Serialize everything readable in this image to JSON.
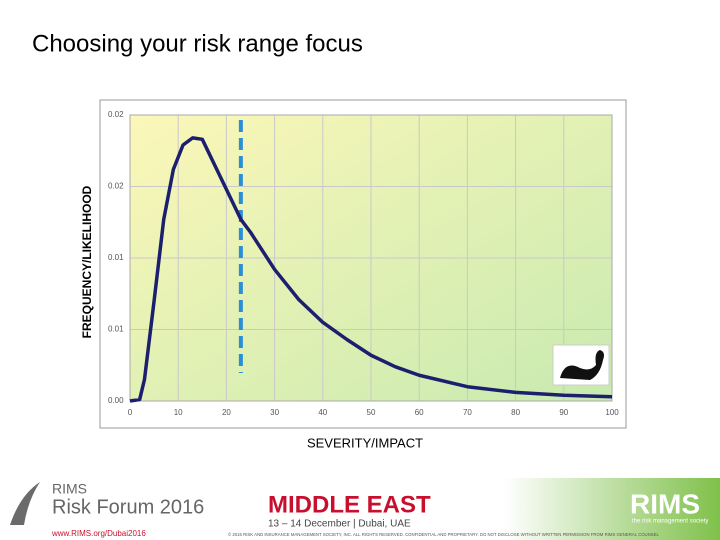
{
  "chart_data": {
    "type": "line",
    "title": "Choosing your risk range focus",
    "y_label": "FREQUENCY/LIKELIHOOD",
    "x_label": "SEVERITY/IMPACT",
    "x": [
      0,
      2,
      3,
      5,
      7,
      9,
      11,
      13,
      15,
      17,
      20,
      23,
      25,
      30,
      35,
      40,
      45,
      50,
      55,
      60,
      70,
      80,
      90,
      100
    ],
    "values": [
      0,
      0.0001,
      0.0015,
      0.007,
      0.0127,
      0.0162,
      0.0179,
      0.0184,
      0.0183,
      0.0169,
      0.0148,
      0.0127,
      0.0118,
      0.0092,
      0.0071,
      0.0055,
      0.0043,
      0.0032,
      0.0024,
      0.0018,
      0.001,
      0.0006,
      0.0004,
      0.0003
    ],
    "color": "#1c1f6e",
    "focus_x": 23,
    "focus_color": "#2a8fd6",
    "xlim": [
      0,
      100
    ],
    "xticks": [
      0,
      10,
      20,
      30,
      40,
      50,
      60,
      70,
      80,
      90,
      100
    ],
    "ylim": [
      0,
      0.02
    ],
    "yticks": [
      {
        "value": 0,
        "label": "0.00"
      },
      {
        "value": 0.005,
        "label": "0.01"
      },
      {
        "value": 0.01,
        "label": "0.01"
      },
      {
        "value": 0.015,
        "label": "0.02"
      },
      {
        "value": 0.02,
        "label": "0.02"
      }
    ],
    "grid": true
  },
  "footer": {
    "brand": "RIMS",
    "event": "Risk Forum 2016",
    "region": "MIDDLE EAST",
    "dates": "13 – 14 December | Dubai, UAE",
    "url": "www.RIMS.org/Dubai2016",
    "copyright": "© 2016 RISK AND INSURANCE MANAGEMENT SOCIETY, INC. ALL RIGHTS RESERVED. CONFIDENTIAL AND PROPRIETARY. DO NOT DISCLOSE WITHOUT WRITTEN PERMISSION FROM RIMS GENERAL COUNSEL",
    "logo": "RIMS",
    "tagline": "the risk management society"
  }
}
